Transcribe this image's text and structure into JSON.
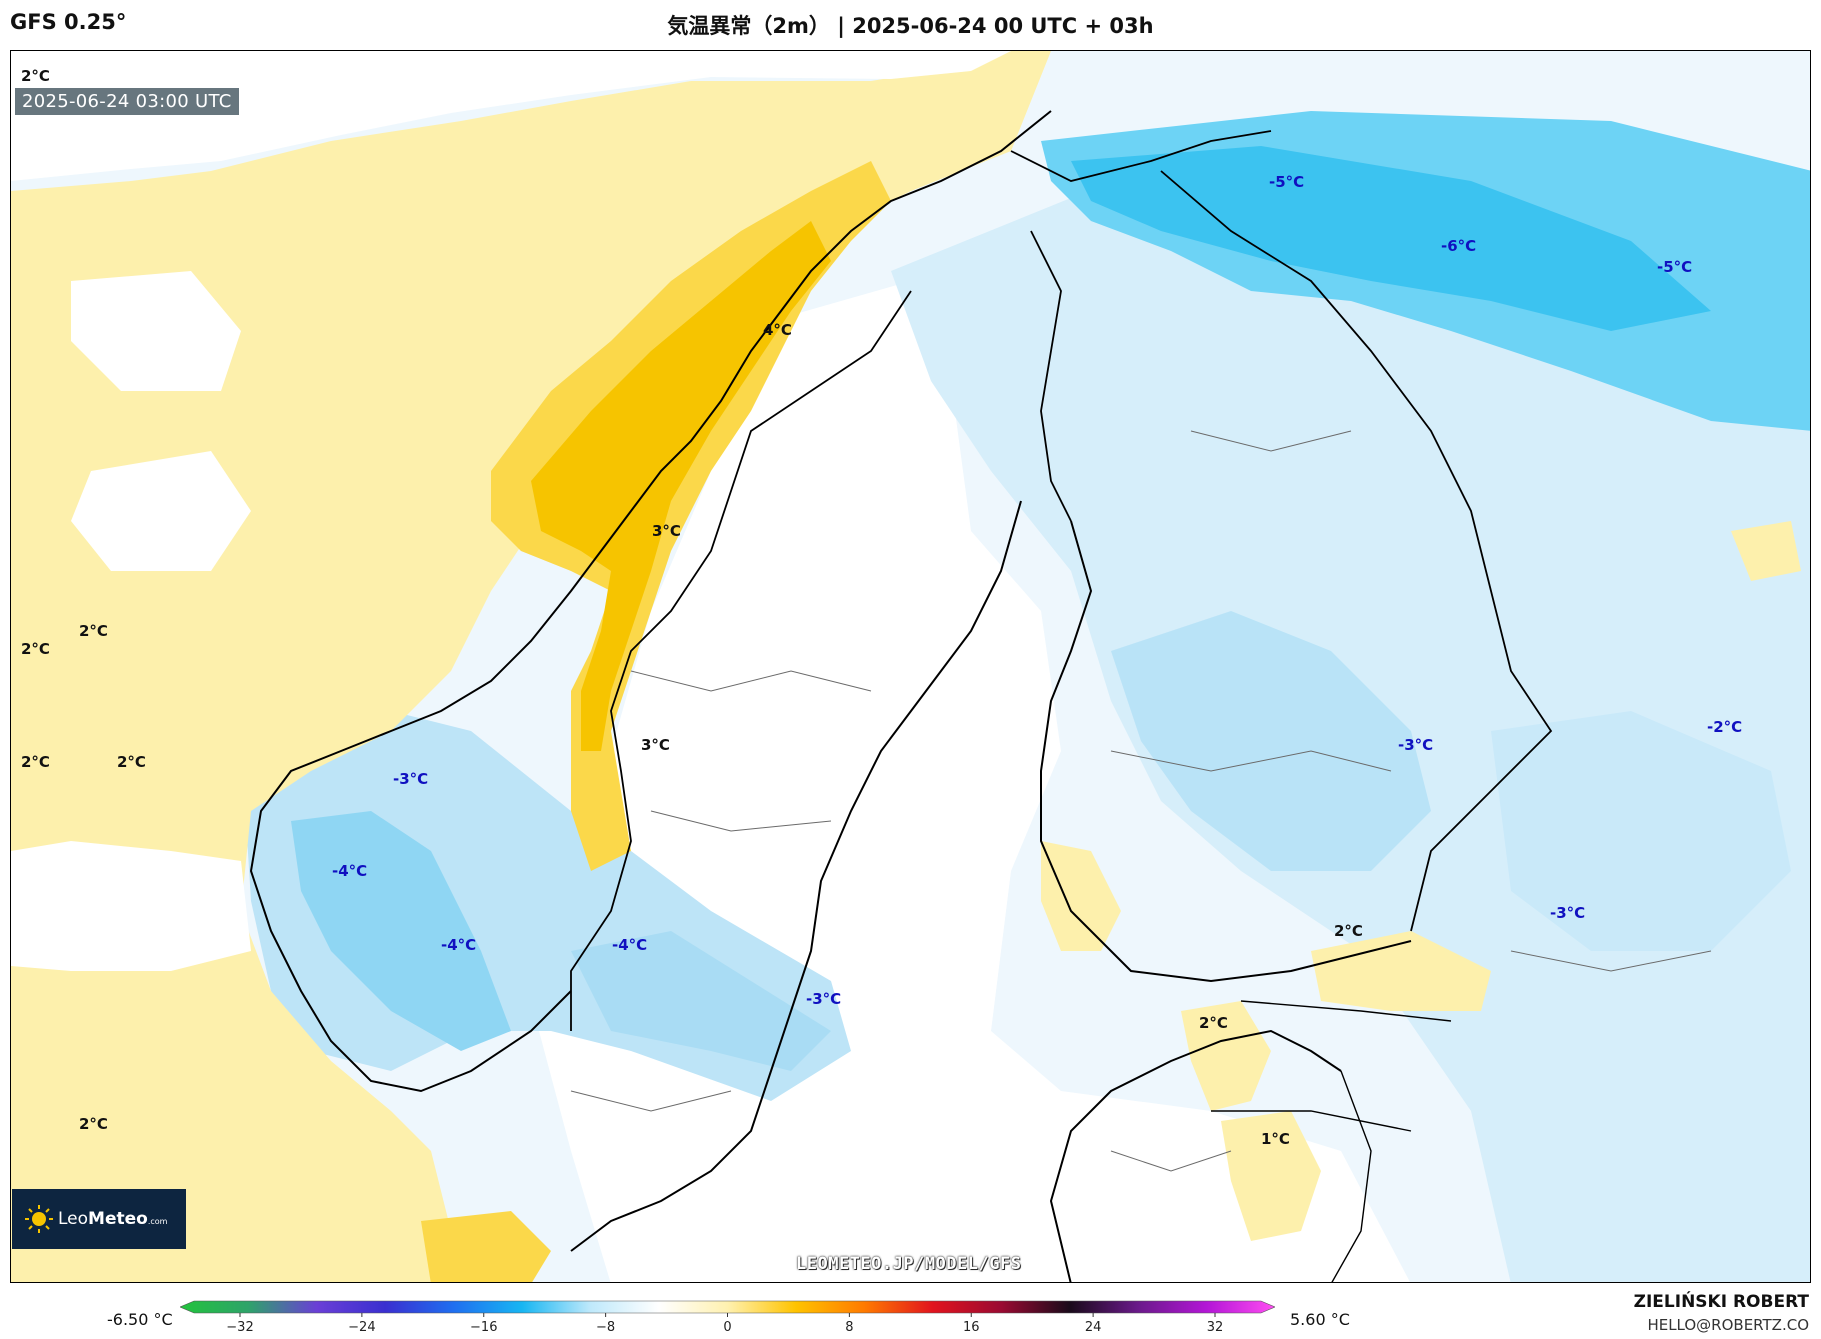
{
  "header": {
    "model": "GFS 0.25°",
    "title": "気温異常（2m） | 2025-06-24 00 UTC + 03h"
  },
  "map": {
    "timestamp": "2025-06-24 03:00 UTC",
    "watermark": "LEOMETEO.JP/MODEL/GFS",
    "labels": [
      {
        "text": "2°C",
        "style": "dark"
      },
      {
        "text": "2°C",
        "style": "dark"
      },
      {
        "text": "2°C",
        "style": "dark"
      },
      {
        "text": "2°C",
        "style": "dark"
      },
      {
        "text": "2°C",
        "style": "dark"
      },
      {
        "text": "2°C",
        "style": "dark"
      },
      {
        "text": "4°C",
        "style": "dark"
      },
      {
        "text": "3°C",
        "style": "dark"
      },
      {
        "text": "3°C",
        "style": "dark"
      },
      {
        "text": "-3°C",
        "style": "blue"
      },
      {
        "text": "-4°C",
        "style": "blue"
      },
      {
        "text": "-4°C",
        "style": "blue"
      },
      {
        "text": "-4°C",
        "style": "blue"
      },
      {
        "text": "-3°C",
        "style": "blue"
      },
      {
        "text": "-5°C",
        "style": "blue"
      },
      {
        "text": "-6°C",
        "style": "blue"
      },
      {
        "text": "-5°C",
        "style": "blue"
      },
      {
        "text": "-3°C",
        "style": "blue"
      },
      {
        "text": "-2°C",
        "style": "blue"
      },
      {
        "text": "-3°C",
        "style": "blue"
      },
      {
        "text": "2°C",
        "style": "dark"
      },
      {
        "text": "2°C",
        "style": "dark"
      },
      {
        "text": "1°C",
        "style": "dark"
      }
    ]
  },
  "logo": {
    "name_light": "Leo",
    "name_bold": "Meteo",
    "suffix": ".com"
  },
  "colorbar": {
    "min_label": "-6.50 °C",
    "max_label": "5.60 °C",
    "ticks": [
      "−32",
      "−24",
      "−16",
      "−8",
      "0",
      "8",
      "16",
      "24",
      "32"
    ],
    "stops": [
      "#22c33c",
      "#2ea36a",
      "#6a3fd6",
      "#3a2fd0",
      "#1f6ff0",
      "#18b6f2",
      "#bfe9fb",
      "#ffffff",
      "#fff1b0",
      "#ffc300",
      "#ff7a00",
      "#e1141e",
      "#9a0a32",
      "#1a0a1a",
      "#6a1a8a",
      "#b316d6",
      "#ff4df2"
    ]
  },
  "credit": {
    "name": "ZIELIŃSKI ROBERT",
    "email": "HELLO@ROBERTZ.CO"
  }
}
